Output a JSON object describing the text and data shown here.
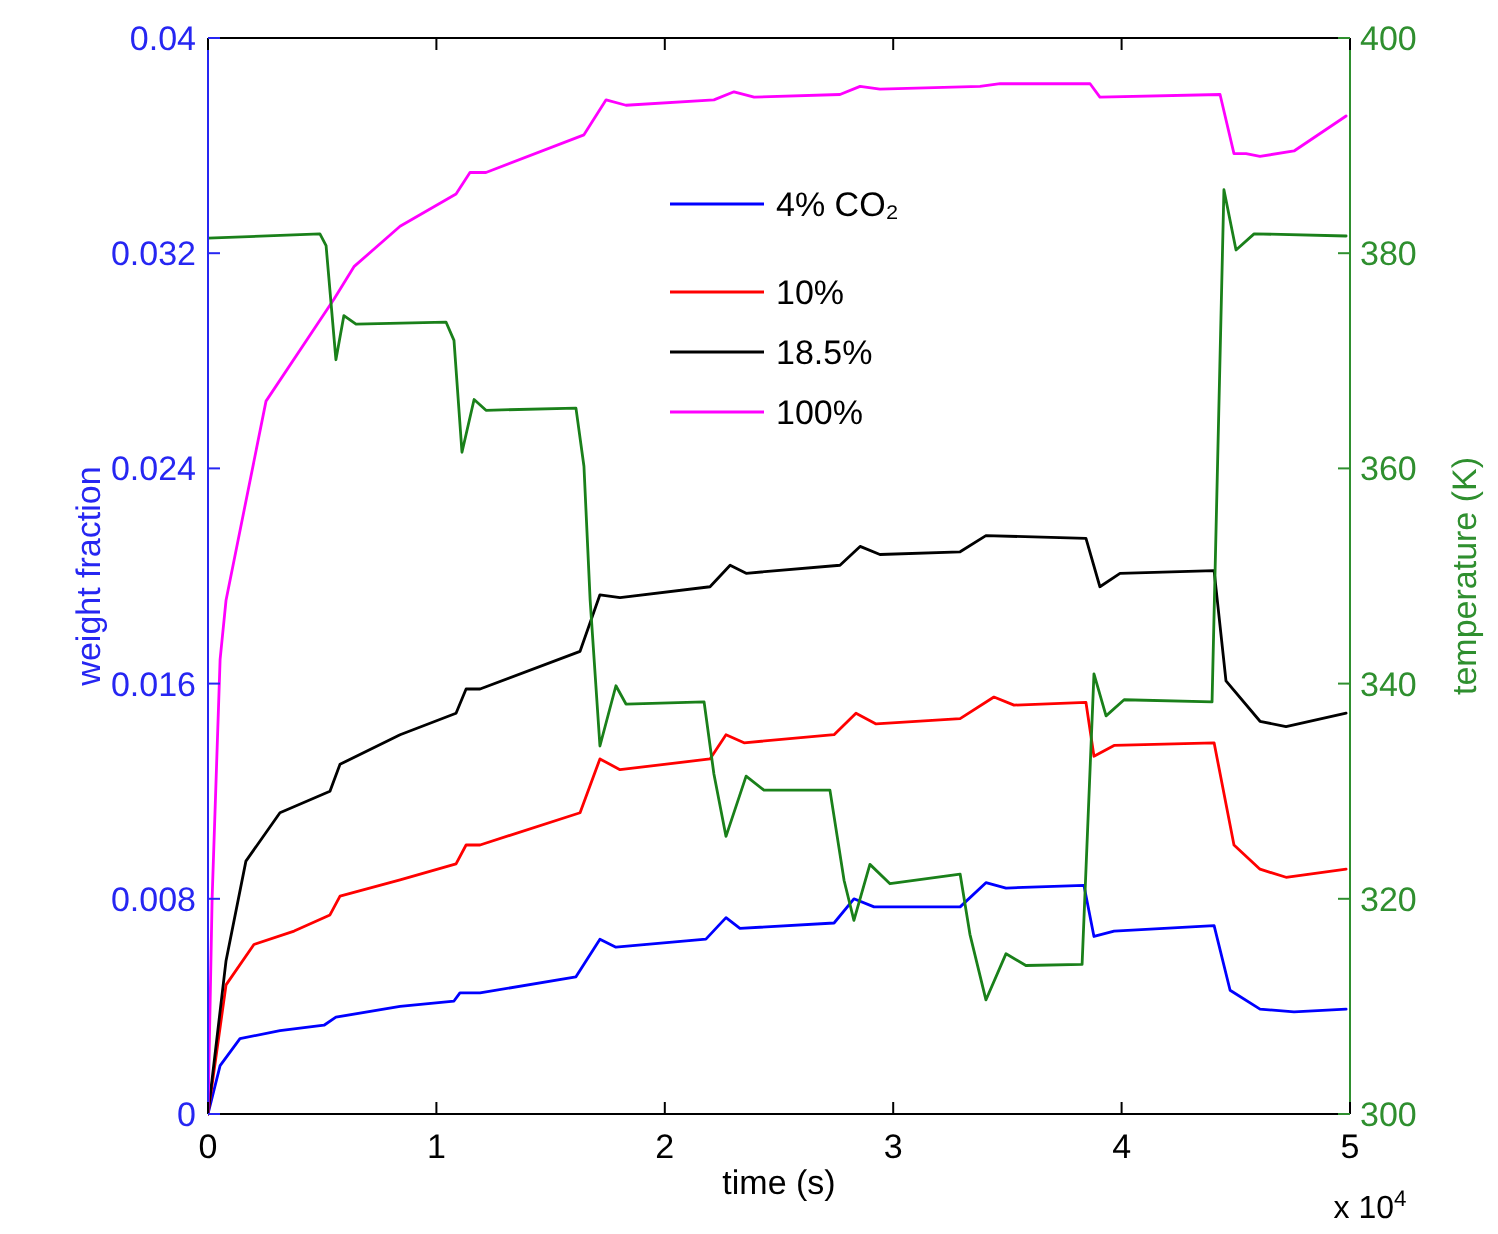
{
  "chart_data": {
    "type": "line",
    "xlabel": "time (s)",
    "ylabel": "weight fraction",
    "y2label": "temperature (K)",
    "xlim": [
      0,
      5
    ],
    "xticks": [
      0,
      1,
      2,
      3,
      4,
      5
    ],
    "ylim": [
      0,
      0.04
    ],
    "yticks": [
      0,
      0.008,
      0.016,
      0.024,
      0.032,
      0.04
    ],
    "y2lim": [
      300,
      400
    ],
    "y2ticks": [
      300,
      320,
      340,
      360,
      380,
      400
    ],
    "grid": false,
    "legend": "top",
    "line_style": "solid",
    "marker": "none",
    "annotations": [
      "x 10$^{4}$"
    ],
    "series": [
      {
        "name": "4% CO₂",
        "color": "#0000ff",
        "x": [
          0,
          0.053,
          0.14,
          0.315,
          0.508,
          0.56,
          0.841,
          1.077,
          1.103,
          1.191,
          1.611,
          1.716,
          1.786,
          2.18,
          2.268,
          2.329,
          2.741,
          2.828,
          2.916,
          3.293,
          3.406,
          3.494,
          3.835,
          3.879,
          3.967,
          4.405,
          4.475,
          4.606,
          4.755,
          4.983
        ],
        "values": [
          0,
          0.0018,
          0.0028,
          0.0031,
          0.0033,
          0.0036,
          0.004,
          0.0042,
          0.0045,
          0.0045,
          0.0051,
          0.0065,
          0.0062,
          0.0065,
          0.0073,
          0.0069,
          0.0071,
          0.008,
          0.0077,
          0.0077,
          0.0086,
          0.0084,
          0.0085,
          0.0066,
          0.0068,
          0.007,
          0.0046,
          0.0039,
          0.0038,
          0.0039
        ]
      },
      {
        "name": "10%",
        "color": "#ff0000",
        "x": [
          0,
          0.079,
          0.201,
          0.377,
          0.534,
          0.578,
          0.841,
          1.086,
          1.13,
          1.191,
          1.629,
          1.716,
          1.804,
          2.198,
          2.268,
          2.347,
          2.741,
          2.837,
          2.925,
          3.293,
          3.441,
          3.529,
          3.844,
          3.879,
          3.967,
          4.405,
          4.492,
          4.606,
          4.72,
          4.983
        ],
        "values": [
          0,
          0.0048,
          0.0063,
          0.0068,
          0.0074,
          0.0081,
          0.0087,
          0.0093,
          0.01,
          0.01,
          0.0112,
          0.0132,
          0.0128,
          0.0132,
          0.0141,
          0.0138,
          0.0141,
          0.0149,
          0.0145,
          0.0147,
          0.0155,
          0.0152,
          0.0153,
          0.0133,
          0.0137,
          0.0138,
          0.01,
          0.0091,
          0.0088,
          0.0091
        ]
      },
      {
        "name": "18.5%",
        "color": "#000000",
        "x": [
          0,
          0.079,
          0.166,
          0.315,
          0.534,
          0.578,
          0.841,
          1.086,
          1.13,
          1.191,
          1.629,
          1.716,
          1.804,
          2.198,
          2.286,
          2.356,
          2.767,
          2.855,
          2.942,
          3.293,
          3.406,
          3.844,
          3.905,
          3.993,
          4.405,
          4.457,
          4.606,
          4.72,
          4.983
        ],
        "values": [
          0,
          0.0057,
          0.0094,
          0.0112,
          0.012,
          0.013,
          0.0141,
          0.0149,
          0.0158,
          0.0158,
          0.0172,
          0.0193,
          0.0192,
          0.0196,
          0.0204,
          0.0201,
          0.0204,
          0.0211,
          0.0208,
          0.0209,
          0.0215,
          0.0214,
          0.0196,
          0.0201,
          0.0202,
          0.0161,
          0.0146,
          0.0144,
          0.0149
        ]
      },
      {
        "name": "100%",
        "color": "#ff00ff",
        "x": [
          0,
          0.018,
          0.053,
          0.079,
          0.254,
          0.552,
          0.639,
          0.841,
          1.086,
          1.147,
          1.217,
          1.646,
          1.743,
          1.83,
          2.215,
          2.303,
          2.391,
          2.767,
          2.855,
          2.942,
          3.38,
          3.468,
          3.862,
          3.905,
          4.431,
          4.492,
          4.545,
          4.606,
          4.755,
          4.983
        ],
        "values": [
          0,
          0.008,
          0.0169,
          0.0191,
          0.0265,
          0.0303,
          0.0315,
          0.033,
          0.0342,
          0.035,
          0.035,
          0.0364,
          0.0377,
          0.0375,
          0.0377,
          0.038,
          0.0378,
          0.0379,
          0.0382,
          0.0381,
          0.0382,
          0.0383,
          0.0383,
          0.0378,
          0.0379,
          0.0357,
          0.0357,
          0.0356,
          0.0358,
          0.0371
        ]
      },
      {
        "color": "#1a801a",
        "axis": "y2",
        "x": [
          0,
          0.49,
          0.517,
          0.56,
          0.595,
          0.648,
          1.042,
          1.077,
          1.112,
          1.165,
          1.217,
          1.611,
          1.646,
          1.673,
          1.716,
          1.786,
          1.83,
          2.172,
          2.215,
          2.268,
          2.356,
          2.434,
          2.723,
          2.785,
          2.828,
          2.898,
          2.986,
          3.293,
          3.336,
          3.406,
          3.494,
          3.581,
          3.827,
          3.879,
          3.932,
          4.011,
          4.396,
          4.448,
          4.501,
          4.58,
          4.983
        ],
        "values": [
          381.4,
          381.8,
          380.7,
          370.1,
          374.2,
          373.4,
          373.6,
          371.9,
          361.5,
          366.4,
          365.4,
          365.6,
          360.2,
          347.8,
          334.2,
          339.8,
          338.1,
          338.3,
          331.6,
          325.8,
          331.4,
          330.1,
          330.1,
          321.7,
          318,
          323.2,
          321.4,
          322.3,
          316.7,
          310.6,
          314.9,
          313.8,
          313.9,
          340.9,
          337,
          338.5,
          338.3,
          385.9,
          380.3,
          381.8,
          381.6
        ]
      }
    ]
  }
}
